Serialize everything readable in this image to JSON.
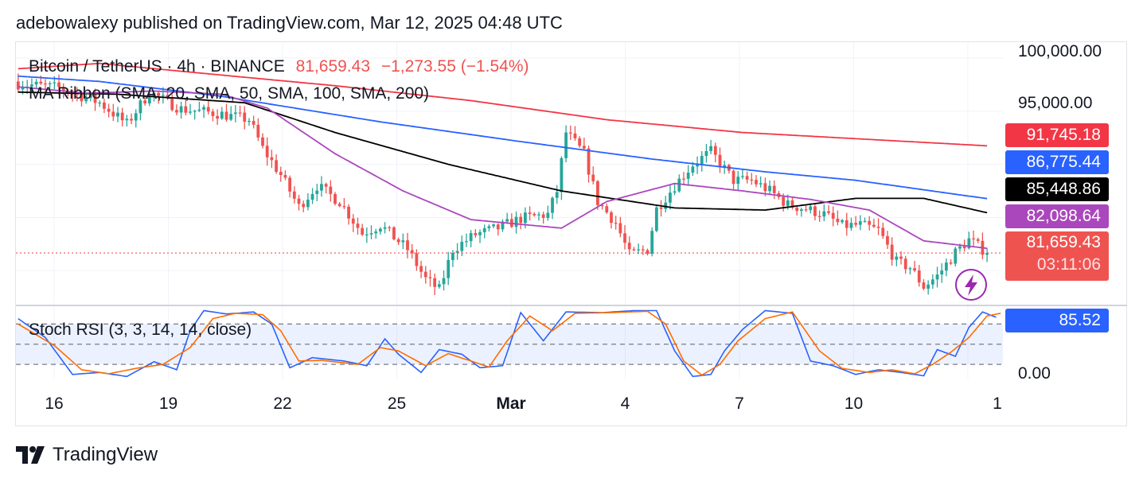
{
  "header": {
    "published": "adebowalexy published on TradingView.com, Mar 12, 2025 04:48 UTC"
  },
  "legend": {
    "symbol": "Bitcoin / TetherUS · 4h · BINANCE",
    "price": "81,659.43",
    "change": "−1,273.55 (−1.54%)",
    "ribbon": "MA Ribbon (SMA, 20, SMA, 50, SMA, 100, SMA, 200)",
    "stoch": "Stoch RSI (3, 3, 14, 14, close)"
  },
  "price_axis": {
    "ticks": [
      "100,000.00",
      "95,000.00"
    ]
  },
  "stoch_axis": {
    "ticks": [
      "0.00"
    ]
  },
  "tags": {
    "sma200": "91,745.18",
    "sma100": "86,775.44",
    "sma50": "85,448.86",
    "sma20": "82,098.64",
    "last": "81,659.43",
    "countdown": "03:11:06",
    "stoch": "85.52"
  },
  "time_axis": [
    {
      "label": "16",
      "bold": false
    },
    {
      "label": "19",
      "bold": false
    },
    {
      "label": "22",
      "bold": false
    },
    {
      "label": "25",
      "bold": false
    },
    {
      "label": "Mar",
      "bold": true
    },
    {
      "label": "4",
      "bold": false
    },
    {
      "label": "7",
      "bold": false
    },
    {
      "label": "10",
      "bold": false
    },
    {
      "label": "1",
      "bold": false
    }
  ],
  "brand": {
    "name": "TradingView"
  },
  "colors": {
    "up": "#26a69a",
    "down": "#ef5350",
    "sma20": "#ab47bc",
    "sma50": "#000000",
    "sma100": "#2962ff",
    "sma200": "#f23645",
    "k": "#2962ff",
    "d": "#ff6d00"
  },
  "chart_data": {
    "type": "candlestick",
    "title": "Bitcoin / TetherUS · 4h · BINANCE",
    "ylim": [
      76800,
      101500
    ],
    "last_price": 81659.43,
    "x_ticks": [
      "16",
      "19",
      "22",
      "25",
      "Mar",
      "4",
      "7",
      "10",
      "1"
    ],
    "close_path": [
      [
        0,
        97600
      ],
      [
        9,
        97200
      ],
      [
        18,
        95800
      ],
      [
        24,
        93800
      ],
      [
        29,
        96800
      ],
      [
        36,
        95200
      ],
      [
        44,
        94800
      ],
      [
        51,
        94200
      ],
      [
        54,
        91500
      ],
      [
        58,
        89000
      ],
      [
        62,
        86000
      ],
      [
        66,
        88000
      ],
      [
        71,
        86500
      ],
      [
        76,
        83500
      ],
      [
        80,
        84300
      ],
      [
        86,
        82000
      ],
      [
        90,
        79200
      ],
      [
        93,
        78200
      ],
      [
        96,
        82000
      ],
      [
        101,
        83400
      ],
      [
        106,
        84000
      ],
      [
        111,
        84900
      ],
      [
        117,
        85300
      ],
      [
        119,
        87500
      ],
      [
        121,
        93000
      ],
      [
        125,
        91000
      ],
      [
        128,
        86500
      ],
      [
        132,
        84500
      ],
      [
        135,
        81500
      ],
      [
        139,
        82000
      ],
      [
        141,
        85800
      ],
      [
        145,
        88000
      ],
      [
        149,
        90000
      ],
      [
        153,
        91200
      ],
      [
        158,
        88500
      ],
      [
        162,
        88500
      ],
      [
        166,
        87500
      ],
      [
        170,
        86200
      ],
      [
        174,
        85800
      ],
      [
        178,
        85300
      ],
      [
        182,
        84200
      ],
      [
        186,
        84300
      ],
      [
        190,
        83800
      ],
      [
        194,
        80800
      ],
      [
        197,
        80300
      ],
      [
        200,
        78500
      ],
      [
        203,
        79500
      ],
      [
        207,
        81700
      ],
      [
        210,
        82900
      ],
      [
        212,
        82300
      ],
      [
        214,
        81700
      ]
    ],
    "series": [
      {
        "name": "SMA 200",
        "points": [
          [
            0,
            99000
          ],
          [
            18,
            99500
          ],
          [
            40,
            98600
          ],
          [
            70,
            97400
          ],
          [
            100,
            96000
          ],
          [
            130,
            94200
          ],
          [
            160,
            93000
          ],
          [
            190,
            92300
          ],
          [
            214,
            91745
          ]
        ]
      },
      {
        "name": "SMA 100",
        "points": [
          [
            0,
            98300
          ],
          [
            18,
            97800
          ],
          [
            45,
            96400
          ],
          [
            80,
            94000
          ],
          [
            110,
            92200
          ],
          [
            140,
            90500
          ],
          [
            165,
            89300
          ],
          [
            185,
            88500
          ],
          [
            214,
            86775
          ]
        ]
      },
      {
        "name": "SMA 50",
        "points": [
          [
            0,
            96800
          ],
          [
            22,
            96600
          ],
          [
            50,
            95800
          ],
          [
            70,
            93000
          ],
          [
            95,
            90000
          ],
          [
            120,
            87500
          ],
          [
            145,
            85900
          ],
          [
            165,
            85700
          ],
          [
            185,
            86800
          ],
          [
            200,
            86800
          ],
          [
            214,
            85449
          ]
        ]
      },
      {
        "name": "SMA 20",
        "points": [
          [
            0,
            97300
          ],
          [
            15,
            96700
          ],
          [
            30,
            96900
          ],
          [
            45,
            96600
          ],
          [
            55,
            95300
          ],
          [
            70,
            91000
          ],
          [
            85,
            87500
          ],
          [
            100,
            84800
          ],
          [
            120,
            84000
          ],
          [
            130,
            86500
          ],
          [
            145,
            88200
          ],
          [
            160,
            87500
          ],
          [
            175,
            86700
          ],
          [
            188,
            85700
          ],
          [
            200,
            82800
          ],
          [
            214,
            82099
          ]
        ]
      },
      {
        "name": "Stoch RSI K",
        "points": [
          [
            0,
            88
          ],
          [
            6,
            60
          ],
          [
            12,
            5
          ],
          [
            18,
            8
          ],
          [
            24,
            2
          ],
          [
            30,
            24
          ],
          [
            35,
            12
          ],
          [
            38,
            70
          ],
          [
            41,
            100
          ],
          [
            46,
            95
          ],
          [
            52,
            98
          ],
          [
            56,
            80
          ],
          [
            60,
            15
          ],
          [
            65,
            30
          ],
          [
            72,
            25
          ],
          [
            77,
            18
          ],
          [
            81,
            58
          ],
          [
            84,
            35
          ],
          [
            89,
            8
          ],
          [
            93,
            42
          ],
          [
            98,
            35
          ],
          [
            102,
            15
          ],
          [
            107,
            18
          ],
          [
            111,
            97
          ],
          [
            116,
            55
          ],
          [
            121,
            98
          ],
          [
            129,
            97
          ],
          [
            136,
            100
          ],
          [
            141,
            100
          ],
          [
            145,
            40
          ],
          [
            149,
            2
          ],
          [
            153,
            5
          ],
          [
            156,
            40
          ],
          [
            160,
            72
          ],
          [
            165,
            100
          ],
          [
            171,
            96
          ],
          [
            175,
            25
          ],
          [
            180,
            18
          ],
          [
            185,
            5
          ],
          [
            190,
            12
          ],
          [
            195,
            8
          ],
          [
            200,
            3
          ],
          [
            203,
            42
          ],
          [
            207,
            32
          ],
          [
            210,
            75
          ],
          [
            213,
            98
          ],
          [
            216,
            90
          ]
        ]
      },
      {
        "name": "Stoch RSI D",
        "points": [
          [
            0,
            80
          ],
          [
            8,
            48
          ],
          [
            14,
            12
          ],
          [
            20,
            6
          ],
          [
            26,
            14
          ],
          [
            32,
            20
          ],
          [
            38,
            45
          ],
          [
            43,
            88
          ],
          [
            48,
            96
          ],
          [
            54,
            94
          ],
          [
            58,
            70
          ],
          [
            62,
            25
          ],
          [
            67,
            26
          ],
          [
            75,
            20
          ],
          [
            80,
            45
          ],
          [
            84,
            40
          ],
          [
            90,
            18
          ],
          [
            95,
            36
          ],
          [
            100,
            25
          ],
          [
            104,
            16
          ],
          [
            108,
            55
          ],
          [
            113,
            92
          ],
          [
            118,
            70
          ],
          [
            123,
            96
          ],
          [
            131,
            97
          ],
          [
            139,
            99
          ],
          [
            143,
            80
          ],
          [
            147,
            25
          ],
          [
            151,
            4
          ],
          [
            155,
            20
          ],
          [
            159,
            55
          ],
          [
            165,
            88
          ],
          [
            171,
            98
          ],
          [
            177,
            40
          ],
          [
            182,
            14
          ],
          [
            188,
            8
          ],
          [
            193,
            12
          ],
          [
            198,
            6
          ],
          [
            202,
            20
          ],
          [
            206,
            38
          ],
          [
            210,
            60
          ],
          [
            214,
            92
          ],
          [
            217,
            96
          ]
        ]
      }
    ],
    "stoch_levels": [
      80,
      50,
      20
    ]
  }
}
